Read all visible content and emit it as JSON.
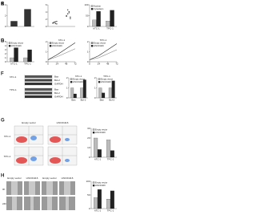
{
  "chart_data": [
    {
      "type": "bar",
      "panel": "A",
      "values": [
        1,
        3.2
      ],
      "color": "#333",
      "ylim": [
        0,
        4
      ],
      "yticks": [
        0,
        2,
        4
      ]
    },
    {
      "type": "dot",
      "panel": "B",
      "categories": [
        null,
        null
      ],
      "values": [
        [
          1.0,
          1.2,
          0.8,
          1.4,
          0.9,
          1.1,
          1.3,
          0.7
        ],
        [
          2.8,
          3.5,
          4.1,
          2.2,
          3.0,
          4.6,
          3.8,
          2.6
        ]
      ],
      "color": "#333",
      "ylim": [
        0,
        6
      ],
      "yticks": [
        0,
        2,
        4,
        6
      ]
    },
    {
      "type": "bar",
      "panel": "C",
      "categories": [
        "hTC-1",
        "TPC-1"
      ],
      "series": [
        {
          "name": "Nuclear",
          "color": "#bbb",
          "values": [
            30,
            25
          ]
        },
        {
          "name": "Cytoplasm",
          "color": "#222",
          "values": [
            70,
            75
          ]
        }
      ],
      "ylim": [
        0,
        100
      ],
      "yticks": [
        0,
        50,
        100
      ]
    },
    {
      "type": "bar",
      "panel": "D",
      "categories": [
        "hTC-1",
        "TPC-1"
      ],
      "series": [
        {
          "name": "Empty vector",
          "color": "#bbb",
          "values": [
            1,
            1
          ]
        },
        {
          "name": "LINC01116",
          "color": "#222",
          "values": [
            3.5,
            3
          ]
        }
      ],
      "ylim": [
        0,
        5
      ],
      "yticks": [
        0,
        1,
        2,
        3,
        4,
        5
      ]
    },
    {
      "type": "line",
      "panel": "E",
      "title": "hTC-1",
      "x": [
        0,
        24,
        48,
        72
      ],
      "xlim": [
        0,
        72
      ],
      "xticks": [
        0,
        24,
        48,
        72
      ],
      "series": [
        {
          "name": "Empty vector",
          "color": "#888",
          "values": [
            0.2,
            0.5,
            0.9,
            1.3
          ]
        },
        {
          "name": "LINC01116",
          "color": "#222",
          "values": [
            0.2,
            0.7,
            1.3,
            1.9
          ]
        }
      ],
      "ylim": [
        0,
        2
      ],
      "yticks": [
        0,
        1,
        2
      ]
    },
    {
      "type": "line",
      "title": "TPC-1",
      "x": [
        0,
        24,
        48,
        72
      ],
      "xlim": [
        0,
        72
      ],
      "xticks": [
        0,
        24,
        48,
        72
      ],
      "series": [
        {
          "name": "Empty vector",
          "color": "#888",
          "values": [
            0.2,
            0.4,
            0.8,
            1.2
          ]
        },
        {
          "name": "LINC01116",
          "color": "#222",
          "values": [
            0.2,
            0.6,
            1.2,
            1.8
          ]
        }
      ],
      "ylim": [
        0,
        2
      ],
      "yticks": [
        0,
        1,
        2
      ]
    },
    {
      "type": "bar",
      "title": "hTC-1",
      "categories": [
        "Bax",
        "Bcl-2"
      ],
      "series": [
        {
          "name": "Empty vector",
          "color": "#bbb",
          "values": [
            1,
            1
          ]
        },
        {
          "name": "LINC01116",
          "color": "#222",
          "values": [
            0.4,
            1.8
          ]
        }
      ],
      "ylim": [
        0,
        2
      ],
      "yticks": [
        0,
        1,
        2
      ]
    },
    {
      "type": "bar",
      "title": "TPC-1",
      "categories": [
        "Bax",
        "Bcl-2"
      ],
      "series": [
        {
          "name": "Empty vector",
          "color": "#bbb",
          "values": [
            1,
            1
          ]
        },
        {
          "name": "LINC01116",
          "color": "#222",
          "values": [
            0.5,
            1.7
          ]
        }
      ],
      "ylim": [
        0,
        2
      ],
      "yticks": [
        0,
        1,
        2
      ]
    },
    {
      "type": "bar",
      "categories": [
        "hTC-1",
        "TPC-1"
      ],
      "series": [
        {
          "name": "Empty vector",
          "color": "#bbb",
          "values": [
            20,
            18
          ]
        },
        {
          "name": "LINC01116",
          "color": "#222",
          "values": [
            8,
            7
          ]
        }
      ],
      "ylim": [
        0,
        30
      ],
      "yticks": [
        0,
        10,
        20,
        30
      ]
    },
    {
      "type": "bar",
      "categories": [
        "hTC-1",
        "TPC-1"
      ],
      "series": [
        {
          "name": "Empty vector",
          "color": "#bbb",
          "values": [
            40,
            35
          ]
        },
        {
          "name": "LINC01116",
          "color": "#222",
          "values": [
            70,
            65
          ]
        }
      ],
      "ylim": [
        0,
        100
      ],
      "yticks": [
        0,
        50,
        100
      ]
    }
  ],
  "blot": {
    "panel": "F",
    "cells": [
      "hTC-1",
      "TPC-1"
    ],
    "bands": [
      "Bax",
      "Bcl-2",
      "GAPDH"
    ]
  },
  "flow": {
    "panel": "G",
    "columns": [
      "Empty vector",
      "LINC01116"
    ],
    "rows": [
      "hTC-1",
      "TPC-1"
    ]
  },
  "wound": {
    "panel": "H",
    "columns": [
      "Empty vector",
      "LINC01116",
      "Empty vector",
      "LINC01116"
    ],
    "rows": [
      "0h",
      "24h"
    ]
  }
}
